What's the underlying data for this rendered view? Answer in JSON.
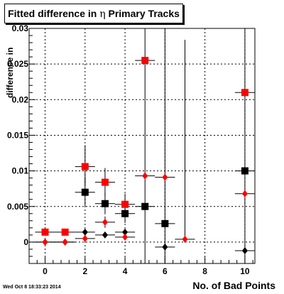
{
  "title": {
    "prefix": "Fitted difference in ",
    "symbol": "η",
    "suffix": " Primary Tracks"
  },
  "timestamp": "Wed Oct  8 18:33:23 2014",
  "chart_data": {
    "type": "scatter",
    "title": "Fitted difference in η Primary Tracks",
    "xlabel": "No. of Bad Points",
    "ylabel": "difference in",
    "xlim": [
      -0.8,
      10.5
    ],
    "ylim": [
      -0.003,
      0.03
    ],
    "x_ticks": [
      0,
      2,
      4,
      6,
      8,
      10
    ],
    "x_tick_labels": [
      "0",
      "2",
      "4",
      "6",
      "8",
      "10"
    ],
    "y_ticks": [
      0,
      0.005,
      0.01,
      0.015,
      0.02,
      0.025,
      0.03
    ],
    "y_tick_labels": [
      "0",
      "0.005",
      "0.01",
      "0.015",
      "0.02",
      "0.025",
      "0.03"
    ],
    "grid": true,
    "series": [
      {
        "marker": "square",
        "color": "#000000",
        "points": [
          {
            "x": 2,
            "y": 0.007,
            "xerr": 0.5,
            "yerr": [
              0.002,
              0.002
            ]
          },
          {
            "x": 3,
            "y": 0.0054,
            "xerr": 0.5,
            "yerr": [
              0.0015,
              0.0015
            ]
          },
          {
            "x": 4,
            "y": 0.004,
            "xerr": 0.5,
            "yerr": [
              0.0013,
              0.0013
            ]
          },
          {
            "x": 5,
            "y": 0.005,
            "xerr": 0.5,
            "yerr": [
              0.008,
              0.025
            ]
          },
          {
            "x": 6,
            "y": 0.0026,
            "xerr": 0.5,
            "yerr": [
              0.0056,
              0.029
            ]
          },
          {
            "x": 10,
            "y": 0.01,
            "xerr": 0.5,
            "yerr": [
              0.013,
              0.03
            ]
          }
        ]
      },
      {
        "marker": "square",
        "color": "#ff0000",
        "points": [
          {
            "x": 0,
            "y": 0.0014,
            "xerr": 0.5,
            "yerr": [
              0,
              0
            ]
          },
          {
            "x": 1,
            "y": 0.0014,
            "xerr": 0.5,
            "yerr": [
              0,
              0
            ]
          },
          {
            "x": 2,
            "y": 0.0106,
            "xerr": 0.5,
            "yerr": [
              0.0025,
              0.003
            ]
          },
          {
            "x": 3,
            "y": 0.0084,
            "xerr": 0.5,
            "yerr": [
              0.002,
              0.002
            ]
          },
          {
            "x": 4,
            "y": 0.0053,
            "xerr": 0.5,
            "yerr": [
              0.0015,
              0.0015
            ]
          },
          {
            "x": 5,
            "y": 0.0255,
            "xerr": 0.5,
            "yerr": [
              0,
              0
            ]
          },
          {
            "x": 10,
            "y": 0.021,
            "xerr": 0.5,
            "yerr": [
              0,
              0
            ]
          }
        ]
      },
      {
        "marker": "diamond",
        "color": "#000000",
        "points": [
          {
            "x": 0,
            "y": 0.0,
            "xerr": 0.5,
            "yerr": [
              0,
              0
            ]
          },
          {
            "x": 1,
            "y": 0.0,
            "xerr": 0.5,
            "yerr": [
              0,
              0
            ]
          },
          {
            "x": 2,
            "y": 0.0014,
            "xerr": 0.5,
            "yerr": [
              0,
              0
            ]
          },
          {
            "x": 3,
            "y": 0.001,
            "xerr": 0.5,
            "yerr": [
              0.0004,
              0.0004
            ]
          },
          {
            "x": 4,
            "y": 0.0014,
            "xerr": 0.5,
            "yerr": [
              0,
              0
            ]
          },
          {
            "x": 6,
            "y": -0.0007,
            "xerr": 0.5,
            "yerr": [
              0,
              0
            ]
          },
          {
            "x": 10,
            "y": -0.0012,
            "xerr": 0.5,
            "yerr": [
              0,
              0
            ]
          }
        ]
      },
      {
        "marker": "diamond",
        "color": "#ff0000",
        "points": [
          {
            "x": 0,
            "y": 0.0,
            "xerr": 0.5,
            "yerr": [
              0,
              0
            ]
          },
          {
            "x": 1,
            "y": 0.0,
            "xerr": 0.5,
            "yerr": [
              0,
              0
            ]
          },
          {
            "x": 2,
            "y": 0.0005,
            "xerr": 0.5,
            "yerr": [
              0,
              0
            ]
          },
          {
            "x": 3,
            "y": 0.0028,
            "xerr": 0.5,
            "yerr": [
              0.0008,
              0.0008
            ]
          },
          {
            "x": 4,
            "y": 0.0007,
            "xerr": 0.5,
            "yerr": [
              0,
              0
            ]
          },
          {
            "x": 5,
            "y": 0.0093,
            "xerr": 0.5,
            "yerr": [
              0,
              0
            ]
          },
          {
            "x": 6,
            "y": 0.0091,
            "xerr": 0.5,
            "yerr": [
              0,
              0
            ]
          },
          {
            "x": 7,
            "y": 0.0004,
            "xerr": 0.5,
            "yerr": [
              0,
              0.028
            ]
          },
          {
            "x": 10,
            "y": 0.0068,
            "xerr": 0.5,
            "yerr": [
              0,
              0
            ]
          }
        ]
      }
    ]
  }
}
